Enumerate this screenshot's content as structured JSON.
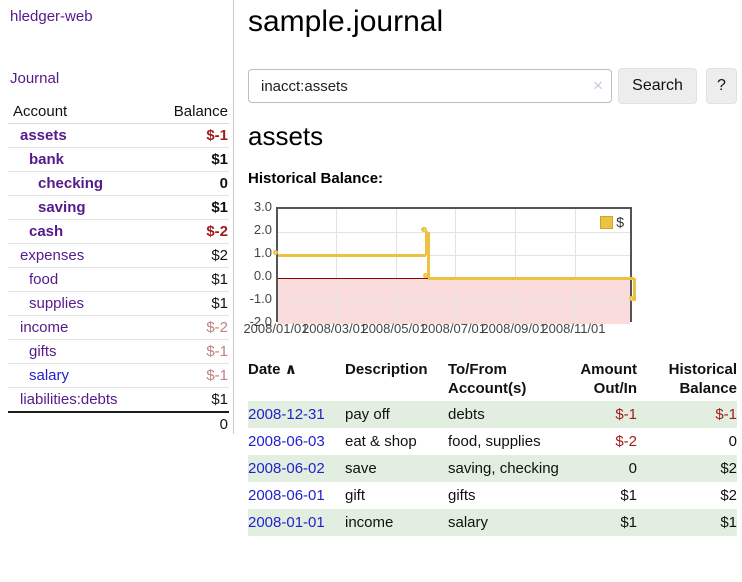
{
  "app": {
    "brand": "hledger-web",
    "nav_journal": "Journal"
  },
  "sidebar": {
    "col_account": "Account",
    "col_balance": "Balance",
    "rows": [
      {
        "name": "assets",
        "depth": 1,
        "bold": true,
        "balance": "$-1"
      },
      {
        "name": "bank",
        "depth": 2,
        "bold": true,
        "balance": "$1"
      },
      {
        "name": "checking",
        "depth": 3,
        "bold": true,
        "balance": "0"
      },
      {
        "name": "saving",
        "depth": 3,
        "bold": true,
        "balance": "$1"
      },
      {
        "name": "cash",
        "depth": 2,
        "bold": true,
        "balance": "$-2"
      },
      {
        "name": "expenses",
        "depth": 1,
        "bold": false,
        "balance": "$2"
      },
      {
        "name": "food",
        "depth": 2,
        "bold": false,
        "balance": "$1"
      },
      {
        "name": "supplies",
        "depth": 2,
        "bold": false,
        "balance": "$1"
      },
      {
        "name": "income",
        "depth": 1,
        "bold": false,
        "balance": "$-2"
      },
      {
        "name": "gifts",
        "depth": 2,
        "bold": false,
        "balance": "$-1"
      },
      {
        "name": "salary",
        "depth": 2,
        "bold": false,
        "balance": "$-1",
        "color": "#2222cc"
      },
      {
        "name": "liabilities:debts",
        "depth": 1,
        "bold": false,
        "balance": "$1"
      }
    ],
    "total": "0"
  },
  "main": {
    "title": "sample.journal",
    "search": {
      "value": "inacct:assets",
      "clear": "×",
      "button": "Search",
      "help": "?"
    },
    "account_heading": "assets",
    "chart_label": "Historical Balance:"
  },
  "chart_data": {
    "type": "line",
    "title": "Historical Balance:",
    "step": true,
    "series": [
      {
        "name": "$",
        "color": "#edc240",
        "points": [
          [
            "2008-01-01",
            1.0
          ],
          [
            "2008-06-01",
            2.0
          ],
          [
            "2008-06-02",
            2.0
          ],
          [
            "2008-06-03",
            0.0
          ],
          [
            "2008-12-31",
            -1.0
          ]
        ]
      }
    ],
    "ylim": [
      -2.0,
      3.0
    ],
    "yticks": [
      "3.0",
      "2.0",
      "1.0",
      "0.0",
      "-1.0",
      "-2.0"
    ],
    "xticks": [
      "2008/01/01",
      "2008/03/01",
      "2008/05/01",
      "2008/07/01",
      "2008/09/01",
      "2008/11/01"
    ],
    "xrange": [
      "2008-01-01",
      "2008-12-31"
    ],
    "legend": "$",
    "legend_position": "top-right",
    "grid": true,
    "negative_region_color": "#fbdcdc",
    "zero_line_color": "#8b0000"
  },
  "register": {
    "headers": {
      "date": "Date",
      "sort_caret": "∧",
      "description": "Description",
      "tofrom": "To/From Account(s)",
      "amount": "Amount Out/In",
      "balance": "Historical Balance"
    },
    "rows": [
      {
        "date": "2008-12-31",
        "description": "pay off",
        "tofrom": "debts",
        "amount": "$-1",
        "balance": "$-1"
      },
      {
        "date": "2008-06-03",
        "description": "eat & shop",
        "tofrom": "food, supplies",
        "amount": "$-2",
        "balance": "0"
      },
      {
        "date": "2008-06-02",
        "description": "save",
        "tofrom": "saving, checking",
        "amount": "0",
        "balance": "$2"
      },
      {
        "date": "2008-06-01",
        "description": "gift",
        "tofrom": "gifts",
        "amount": "$1",
        "balance": "$2"
      },
      {
        "date": "2008-01-01",
        "description": "income",
        "tofrom": "salary",
        "amount": "$1",
        "balance": "$1"
      }
    ]
  }
}
